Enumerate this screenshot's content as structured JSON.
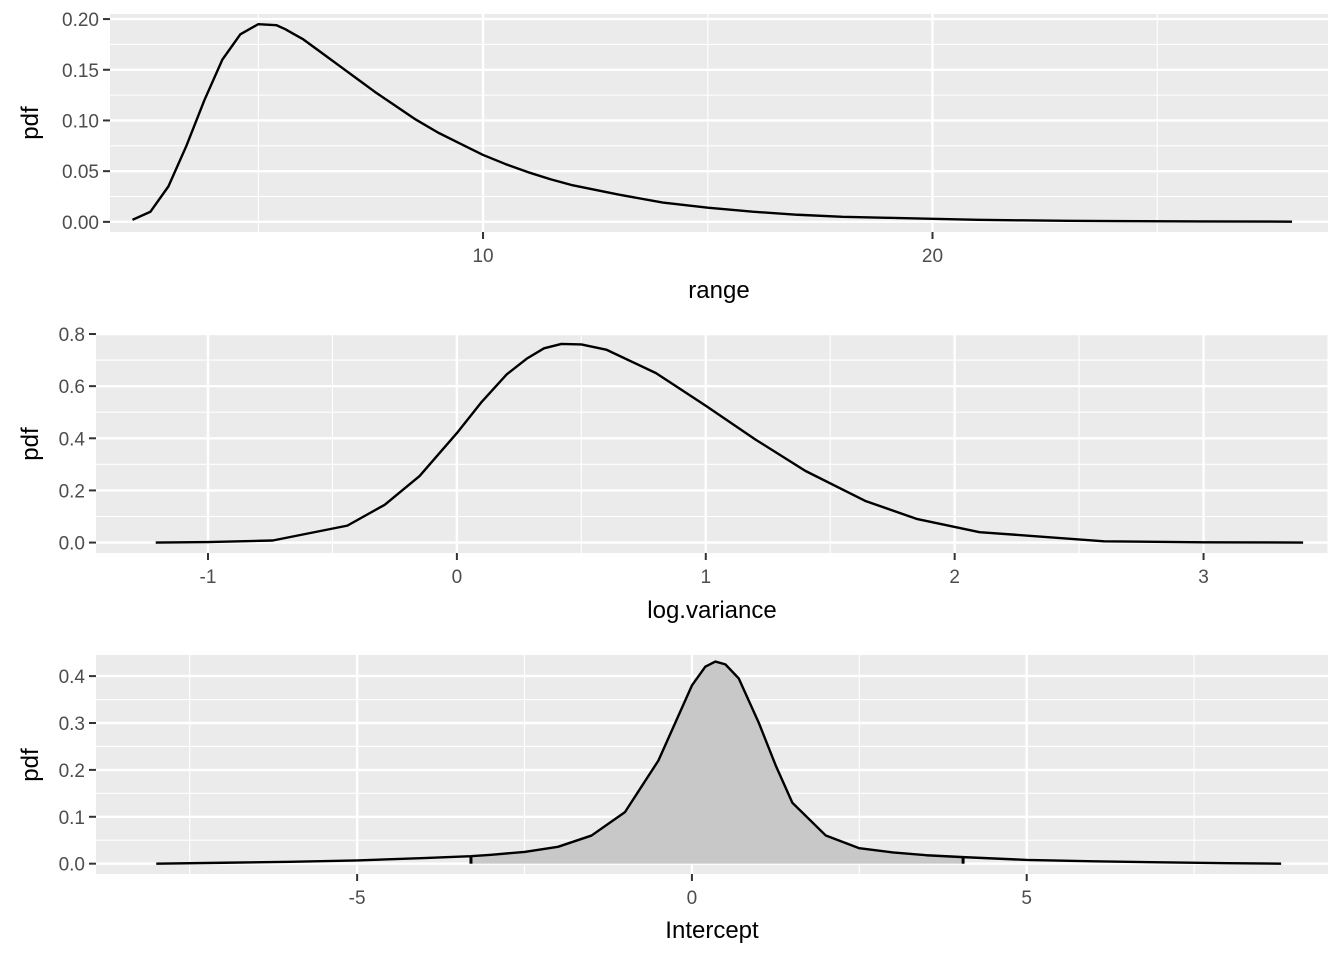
{
  "chart_data": [
    {
      "type": "line",
      "xlabel": "range",
      "ylabel": "pdf",
      "xlim": [
        1.7,
        28.8
      ],
      "ylim": [
        -0.01,
        0.205
      ],
      "xticks": [
        10,
        20
      ],
      "xtick_labels": [
        "10",
        "20"
      ],
      "yticks": [
        0.0,
        0.05,
        0.1,
        0.15,
        0.2
      ],
      "ytick_labels": [
        "0.00",
        "0.05",
        "0.10",
        "0.15",
        "0.20"
      ],
      "grid": true,
      "shaded": false,
      "series": [
        {
          "x": [
            2.2,
            2.6,
            3.0,
            3.4,
            3.8,
            4.2,
            4.6,
            5.0,
            5.4,
            5.6,
            5.8,
            6.0,
            6.4,
            6.8,
            7.2,
            7.6,
            8.0,
            8.5,
            9.0,
            9.5,
            10.0,
            10.5,
            11.0,
            11.5,
            12.0,
            13.0,
            14.0,
            15.0,
            16.0,
            17.0,
            18.0,
            19.0,
            20.0,
            21.0,
            22.0,
            23.0,
            24.0,
            26.0,
            28.0
          ],
          "y": [
            0.002,
            0.01,
            0.035,
            0.075,
            0.12,
            0.16,
            0.185,
            0.195,
            0.194,
            0.19,
            0.185,
            0.18,
            0.167,
            0.154,
            0.141,
            0.128,
            0.116,
            0.101,
            0.088,
            0.077,
            0.066,
            0.057,
            0.049,
            0.042,
            0.036,
            0.027,
            0.019,
            0.014,
            0.01,
            0.007,
            0.005,
            0.004,
            0.003,
            0.002,
            0.0015,
            0.001,
            0.0008,
            0.0004,
            0.0002
          ]
        }
      ]
    },
    {
      "type": "line",
      "xlabel": "log.variance",
      "ylabel": "pdf",
      "xlim": [
        -1.45,
        3.5
      ],
      "ylim": [
        -0.04,
        0.8
      ],
      "xticks": [
        -1,
        0,
        1,
        2,
        3
      ],
      "xtick_labels": [
        "-1",
        "0",
        "1",
        "2",
        "3"
      ],
      "yticks": [
        0.0,
        0.2,
        0.4,
        0.6,
        0.8
      ],
      "ytick_labels": [
        "0.0",
        "0.2",
        "0.4",
        "0.6",
        "0.8"
      ],
      "grid": true,
      "shaded": false,
      "series": [
        {
          "x": [
            -1.21,
            -1.0,
            -0.74,
            -0.44,
            -0.29,
            -0.15,
            0.0,
            0.1,
            0.2,
            0.28,
            0.35,
            0.42,
            0.5,
            0.6,
            0.8,
            1.0,
            1.2,
            1.4,
            1.64,
            1.85,
            2.1,
            2.6,
            3.0,
            3.4
          ],
          "y": [
            0.0,
            0.002,
            0.008,
            0.065,
            0.145,
            0.255,
            0.42,
            0.54,
            0.645,
            0.705,
            0.745,
            0.762,
            0.76,
            0.74,
            0.65,
            0.525,
            0.395,
            0.275,
            0.16,
            0.09,
            0.04,
            0.005,
            0.001,
            0.0
          ]
        }
      ]
    },
    {
      "type": "area",
      "xlabel": "Intercept",
      "ylabel": "pdf",
      "xlim": [
        -8.9,
        9.5
      ],
      "ylim": [
        -0.022,
        0.445
      ],
      "xticks": [
        -5,
        0,
        5
      ],
      "xtick_labels": [
        "-5",
        "0",
        "5"
      ],
      "yticks": [
        0.0,
        0.1,
        0.2,
        0.3,
        0.4
      ],
      "ytick_labels": [
        "0.0",
        "0.1",
        "0.2",
        "0.3",
        "0.4"
      ],
      "grid": true,
      "shaded": true,
      "shade_from": -3.3,
      "shade_to": 4.05,
      "series": [
        {
          "x": [
            -8.0,
            -7.0,
            -6.0,
            -5.0,
            -4.0,
            -3.3,
            -3.0,
            -2.5,
            -2.0,
            -1.5,
            -1.0,
            -0.5,
            -0.25,
            0.0,
            0.2,
            0.35,
            0.5,
            0.7,
            1.0,
            1.25,
            1.5,
            2.0,
            2.5,
            3.0,
            3.5,
            4.05,
            5.0,
            6.0,
            7.0,
            8.0,
            8.8
          ],
          "y": [
            0.0,
            0.002,
            0.004,
            0.007,
            0.012,
            0.016,
            0.019,
            0.025,
            0.036,
            0.06,
            0.11,
            0.22,
            0.3,
            0.38,
            0.42,
            0.431,
            0.425,
            0.395,
            0.3,
            0.21,
            0.13,
            0.06,
            0.033,
            0.024,
            0.018,
            0.014,
            0.008,
            0.005,
            0.003,
            0.001,
            0.0
          ]
        }
      ]
    }
  ]
}
